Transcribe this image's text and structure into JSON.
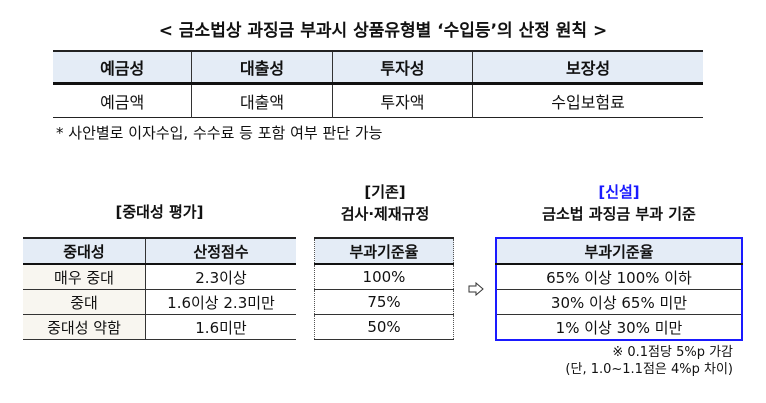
{
  "title": "< 금소법상 과징금 부과시 상품유형별 ‘수입등’의 산정 원칙 >",
  "top_table": {
    "headers": [
      "예금성",
      "대출성",
      "투자성",
      "보장성"
    ],
    "values": [
      "예금액",
      "대출액",
      "투자액",
      "수입보험료"
    ]
  },
  "top_note": "* 사안별로 이자수입, 수수료 등 포함 여부 판단 가능",
  "left": {
    "title": "[중대성 평가]",
    "headers": [
      "중대성",
      "산정점수"
    ],
    "rows": [
      [
        "매우 중대",
        "2.3이상"
      ],
      [
        "중대",
        "1.6이상 2.3미만"
      ],
      [
        "중대성 약함",
        "1.6미만"
      ]
    ]
  },
  "middle": {
    "title1": "[기존]",
    "title2": "검사·제재규정",
    "header": "부과기준율",
    "rows": [
      "100%",
      "75%",
      "50%"
    ]
  },
  "arrow_icon": "right-arrow-outline",
  "right": {
    "title1": "[신설]",
    "title2": "금소법 과징금 부과 기준",
    "header": "부과기준율",
    "rows": [
      "65% 이상 100% 이하",
      "30% 이상 65% 미만",
      "1% 이상 30% 미만"
    ],
    "note1": "※ 0.1점당 5%p 가감",
    "note2": "(단, 1.0~1.1점은 4%p 차이)",
    "accent": "#1a1aff"
  }
}
